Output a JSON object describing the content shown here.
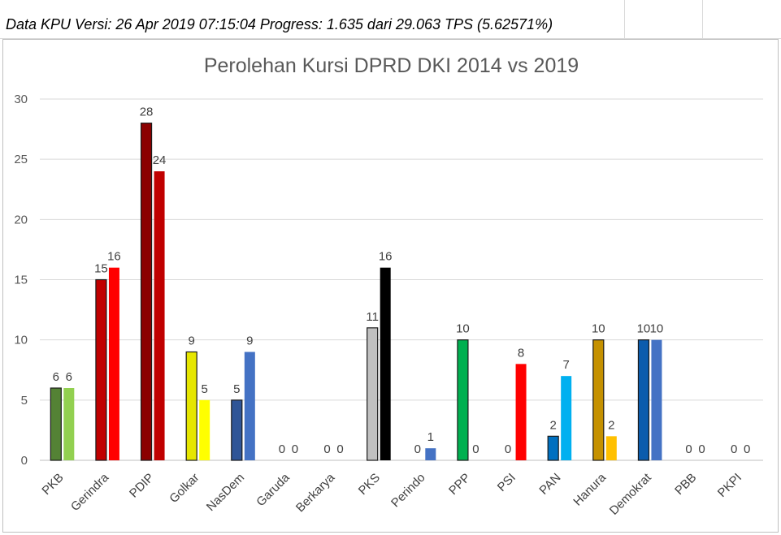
{
  "header": {
    "text": "Data KPU Versi: 26 Apr 2019 07:15:04 Progress: 1.635 dari 29.063 TPS (5.62571%)"
  },
  "chart_data": {
    "type": "bar",
    "title": "Perolehan Kursi DPRD DKI 2014 vs 2019",
    "xlabel": "",
    "ylabel": "",
    "ylim": [
      0,
      30
    ],
    "yticks": [
      0,
      5,
      10,
      15,
      20,
      25,
      30
    ],
    "grid": true,
    "legend": "none",
    "categories": [
      "PKB",
      "Gerindra",
      "PDIP",
      "Golkar",
      "NasDem",
      "Garuda",
      "Berkarya",
      "PKS",
      "Perindo",
      "PPP",
      "PSI",
      "PAN",
      "Hanura",
      "Demokrat",
      "PBB",
      "PKPI"
    ],
    "series": [
      {
        "values": [
          6,
          15,
          28,
          9,
          5,
          0,
          0,
          11,
          0,
          10,
          0,
          2,
          10,
          10,
          0,
          0
        ],
        "colors": [
          "#548235",
          "#c00000",
          "#8b0000",
          "#e6e600",
          "#2f5597",
          "#ffffff",
          "#ffffff",
          "#c0c0c0",
          "#ffffff",
          "#00b050",
          "#ffffff",
          "#0070c0",
          "#c59100",
          "#0b5cad",
          "#ffffff",
          "#ffffff"
        ]
      },
      {
        "values": [
          6,
          16,
          24,
          5,
          9,
          0,
          0,
          16,
          1,
          0,
          8,
          7,
          2,
          10,
          0,
          0
        ],
        "colors": [
          "#92d050",
          "#ff0000",
          "#c00000",
          "#ffff00",
          "#4472c4",
          "#ffffff",
          "#ffffff",
          "#000000",
          "#4472c4",
          "#00b050",
          "#ff0000",
          "#00b0f0",
          "#ffc000",
          "#4472c4",
          "#ffffff",
          "#ffffff"
        ]
      }
    ]
  }
}
